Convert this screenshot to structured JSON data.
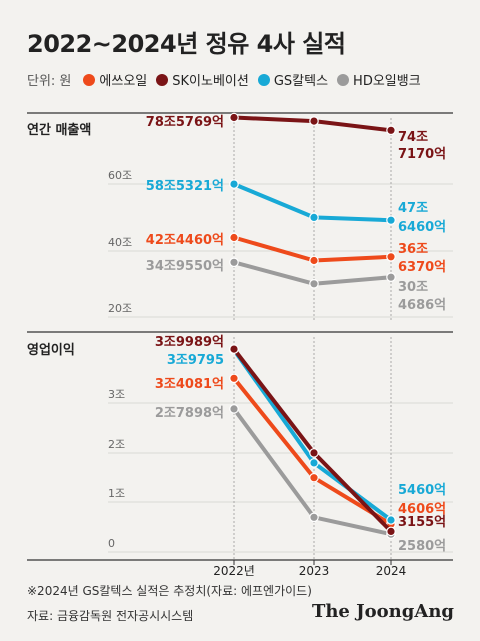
{
  "title": "2022~2024년 정유 4사 실적",
  "legend": {
    "unit": "단위: 원",
    "items": [
      {
        "name": "에쓰오일",
        "color": "#ee4a1b"
      },
      {
        "name": "SK이노베이션",
        "color": "#7a1416"
      },
      {
        "name": "GS칼텍스",
        "color": "#18a9d6"
      },
      {
        "name": "HD오일뱅크",
        "color": "#9b9b9b"
      }
    ]
  },
  "chart_data": [
    {
      "type": "line",
      "title": "연간 매출액",
      "x": [
        "2022년",
        "2023",
        "2024"
      ],
      "y_ticks": [
        "20조",
        "40조",
        "60조"
      ],
      "ylim": [
        20,
        80
      ],
      "series": [
        {
          "name": "SK이노베이션",
          "color": "#7a1416",
          "values": [
            78.5769,
            77.5,
            74.717
          ],
          "labels": {
            "start": "78조5769억",
            "end": [
              "74조",
              "7170억"
            ]
          }
        },
        {
          "name": "GS칼텍스",
          "color": "#18a9d6",
          "values": [
            58.5321,
            48.5,
            47.646
          ],
          "labels": {
            "start": "58조5321억",
            "end": [
              "47조",
              "6460억"
            ]
          }
        },
        {
          "name": "에쓰오일",
          "color": "#ee4a1b",
          "values": [
            42.446,
            35.5,
            36.637
          ],
          "labels": {
            "start": "42조4460억",
            "end": [
              "36조",
              "6370억"
            ]
          }
        },
        {
          "name": "HD오일뱅크",
          "color": "#9b9b9b",
          "values": [
            34.955,
            28.5,
            30.4686
          ],
          "labels": {
            "start": "34조9550억",
            "end": [
              "30조",
              "4686억"
            ]
          }
        }
      ]
    },
    {
      "type": "line",
      "title": "영업이익",
      "x": [
        "2022년",
        "2023",
        "2024"
      ],
      "y_ticks": [
        "0",
        "1조",
        "2조",
        "3조"
      ],
      "ylim": [
        0,
        4
      ],
      "series": [
        {
          "name": "SK이노베이션",
          "color": "#7a1416",
          "values": [
            3.9989,
            1.9,
            0.3155
          ],
          "labels": {
            "start": "3조9989억",
            "end": "3155억"
          }
        },
        {
          "name": "GS칼텍스",
          "color": "#18a9d6",
          "values": [
            3.9795,
            1.7,
            0.546
          ],
          "labels": {
            "start": "3조9795",
            "end": "5460억"
          }
        },
        {
          "name": "에쓰오일",
          "color": "#ee4a1b",
          "values": [
            3.4081,
            1.4,
            0.4606
          ],
          "labels": {
            "start": "3조4081억",
            "end": "4606억"
          }
        },
        {
          "name": "HD오일뱅크",
          "color": "#9b9b9b",
          "values": [
            2.7898,
            0.6,
            0.258
          ],
          "labels": {
            "start": "2조7898억",
            "end": "2580억"
          }
        }
      ]
    }
  ],
  "footnote": "※2024년 GS칼텍스 실적은 추정치(자료: 에프엔가이드)",
  "source": "자료: 금융감독원 전자공시시스템",
  "logo": "The JoongAng"
}
